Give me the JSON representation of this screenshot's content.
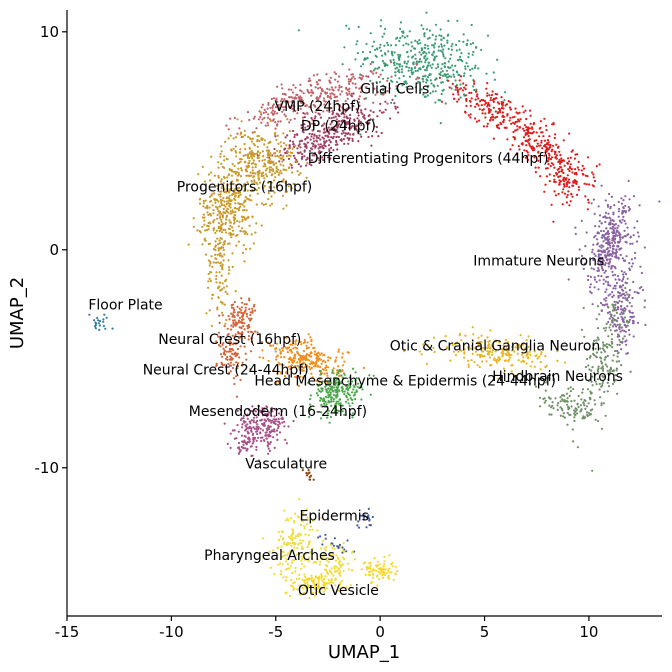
{
  "chart_data": {
    "type": "scatter",
    "title": "",
    "xlabel": "UMAP_1",
    "ylabel": "UMAP_2",
    "xlim": [
      -15,
      13.5
    ],
    "ylim": [
      -16.8,
      11
    ],
    "xticks": [
      -15,
      -10,
      -5,
      0,
      5,
      10
    ],
    "yticks": [
      -10,
      0,
      10
    ],
    "xtick_labels": [
      "-15",
      "-10",
      "-5",
      "0",
      "5",
      "10"
    ],
    "ytick_labels": [
      "-10",
      "0",
      "10"
    ],
    "grid": false,
    "legend": "none",
    "clusters": [
      {
        "name": "Glial Cells",
        "color": "#3d9b74",
        "label_xy": [
          0.7,
          7.4
        ],
        "blobs": [
          {
            "cx": 2.0,
            "cy": 8.6,
            "sx": 1.5,
            "sy": 0.9,
            "n": 420,
            "rot": -10
          }
        ]
      },
      {
        "name": "VMP (24hpf)",
        "color": "#c0616a",
        "label_xy": [
          -3.0,
          6.6
        ],
        "blobs": [
          {
            "cx": -2.3,
            "cy": 7.2,
            "sx": 1.4,
            "sy": 0.45,
            "n": 220,
            "rot": 10
          },
          {
            "cx": -5.0,
            "cy": 6.3,
            "sx": 1.0,
            "sy": 0.4,
            "n": 90,
            "rot": 25
          }
        ]
      },
      {
        "name": "DP (24hpf)",
        "color": "#a03e61",
        "label_xy": [
          -2.0,
          5.7
        ],
        "blobs": [
          {
            "cx": -2.0,
            "cy": 5.6,
            "sx": 1.3,
            "sy": 0.5,
            "n": 260,
            "rot": 20
          },
          {
            "cx": -3.4,
            "cy": 4.6,
            "sx": 0.8,
            "sy": 0.4,
            "n": 90,
            "rot": 15
          }
        ]
      },
      {
        "name": "Differentiating Progenitors (44hpf)",
        "color": "#e01a1a",
        "label_xy": [
          2.3,
          4.2
        ],
        "blobs": [
          {
            "cx": 5.2,
            "cy": 6.6,
            "sx": 1.0,
            "sy": 0.4,
            "n": 160,
            "rot": -30
          },
          {
            "cx": 7.5,
            "cy": 5.0,
            "sx": 1.0,
            "sy": 0.45,
            "n": 180,
            "rot": -35
          },
          {
            "cx": 9.0,
            "cy": 3.3,
            "sx": 0.6,
            "sy": 0.6,
            "n": 140,
            "rot": -55
          }
        ]
      },
      {
        "name": "Progenitors (16hpf)",
        "color": "#c99a28",
        "label_xy": [
          -6.5,
          2.9
        ],
        "blobs": [
          {
            "cx": -5.8,
            "cy": 4.0,
            "sx": 0.9,
            "sy": 0.8,
            "n": 320,
            "rot": 0
          },
          {
            "cx": -7.3,
            "cy": 1.8,
            "sx": 0.7,
            "sy": 0.9,
            "n": 320,
            "rot": 0
          },
          {
            "cx": -7.7,
            "cy": -0.8,
            "sx": 0.3,
            "sy": 1.3,
            "n": 100,
            "rot": 0
          }
        ]
      },
      {
        "name": "Immature Neurons",
        "color": "#8a62a0",
        "label_xy": [
          7.6,
          -0.5
        ],
        "blobs": [
          {
            "cx": 11.0,
            "cy": 0.2,
            "sx": 0.55,
            "sy": 1.1,
            "n": 360,
            "rot": -10
          },
          {
            "cx": 11.6,
            "cy": -2.8,
            "sx": 0.45,
            "sy": 0.9,
            "n": 160,
            "rot": 0
          }
        ]
      },
      {
        "name": "Hindbrain Neurons",
        "color": "#6f8f67",
        "label_xy": [
          8.5,
          -5.8
        ],
        "blobs": [
          {
            "cx": 10.6,
            "cy": -5.3,
            "sx": 0.5,
            "sy": 1.4,
            "n": 200,
            "rot": -15
          },
          {
            "cx": 9.0,
            "cy": -7.2,
            "sx": 0.7,
            "sy": 0.3,
            "n": 90,
            "rot": -20
          }
        ]
      },
      {
        "name": "Otic & Cranial Ganglia Neuron",
        "color": "#e7b41e",
        "label_xy": [
          5.5,
          -4.4
        ],
        "blobs": [
          {
            "cx": 5.5,
            "cy": -4.7,
            "sx": 1.3,
            "sy": 0.35,
            "n": 200,
            "rot": -5
          }
        ]
      },
      {
        "name": "Floor Plate",
        "color": "#2e7fa0",
        "label_xy": [
          -12.2,
          -2.5
        ],
        "blobs": [
          {
            "cx": -13.5,
            "cy": -3.3,
            "sx": 0.25,
            "sy": 0.2,
            "n": 20,
            "rot": 45
          }
        ]
      },
      {
        "name": "Neural Crest (16hpf)",
        "color": "#d4643a",
        "label_xy": [
          -7.2,
          -4.1
        ],
        "blobs": [
          {
            "cx": -6.7,
            "cy": -3.2,
            "sx": 0.4,
            "sy": 0.5,
            "n": 120,
            "rot": 0
          },
          {
            "cx": -7.1,
            "cy": -4.8,
            "sx": 0.35,
            "sy": 0.6,
            "n": 90,
            "rot": 0
          }
        ]
      },
      {
        "name": "Neural Crest (24-44hpf)",
        "color": "#f28c1a",
        "label_xy": [
          -7.4,
          -5.5
        ],
        "blobs": [
          {
            "cx": -3.5,
            "cy": -5.1,
            "sx": 0.9,
            "sy": 0.45,
            "n": 250,
            "rot": -10
          }
        ]
      },
      {
        "name": "Head Mesenchyme & Epidermis (24-44hpf)",
        "color": "#4aa84a",
        "label_xy": [
          1.2,
          -6.0
        ],
        "blobs": [
          {
            "cx": -2.1,
            "cy": -6.6,
            "sx": 0.6,
            "sy": 0.45,
            "n": 220,
            "rot": 20
          }
        ]
      },
      {
        "name": "Mesendoderm (16-24hpf)",
        "color": "#a7508a",
        "label_xy": [
          -4.9,
          -7.4
        ],
        "blobs": [
          {
            "cx": -5.6,
            "cy": -8.1,
            "sx": 0.6,
            "sy": 0.5,
            "n": 200,
            "rot": 0
          },
          {
            "cx": -6.5,
            "cy": -8.8,
            "sx": 0.3,
            "sy": 0.35,
            "n": 50,
            "rot": 0
          }
        ]
      },
      {
        "name": "Vasculature",
        "color": "#8b4513",
        "label_xy": [
          -4.5,
          -9.8
        ],
        "blobs": [
          {
            "cx": -3.4,
            "cy": -10.3,
            "sx": 0.12,
            "sy": 0.12,
            "n": 12,
            "rot": 0
          }
        ]
      },
      {
        "name": "Epidermis",
        "color": "#4a5f9a",
        "label_xy": [
          -2.2,
          -12.2
        ],
        "blobs": [
          {
            "cx": -0.7,
            "cy": -12.4,
            "sx": 0.2,
            "sy": 0.2,
            "n": 20,
            "rot": 0
          },
          {
            "cx": -2.1,
            "cy": -13.5,
            "sx": 0.6,
            "sy": 0.15,
            "n": 20,
            "rot": -25
          }
        ]
      },
      {
        "name": "Pharyngeal Arches",
        "color": "#f0dc3a",
        "label_xy": [
          -5.3,
          -14.0
        ],
        "blobs": [
          {
            "cx": -4.0,
            "cy": -13.5,
            "sx": 0.55,
            "sy": 0.8,
            "n": 160,
            "rot": 0
          },
          {
            "cx": -2.2,
            "cy": -14.3,
            "sx": 0.4,
            "sy": 0.4,
            "n": 70,
            "rot": 0
          }
        ]
      },
      {
        "name": "Otic Vesicle",
        "color": "#f6d82a",
        "label_xy": [
          -2.0,
          -15.6
        ],
        "blobs": [
          {
            "cx": -3.1,
            "cy": -15.3,
            "sx": 0.7,
            "sy": 0.25,
            "n": 110,
            "rot": 0
          },
          {
            "cx": -0.1,
            "cy": -14.7,
            "sx": 0.4,
            "sy": 0.25,
            "n": 80,
            "rot": 0
          }
        ]
      }
    ]
  }
}
